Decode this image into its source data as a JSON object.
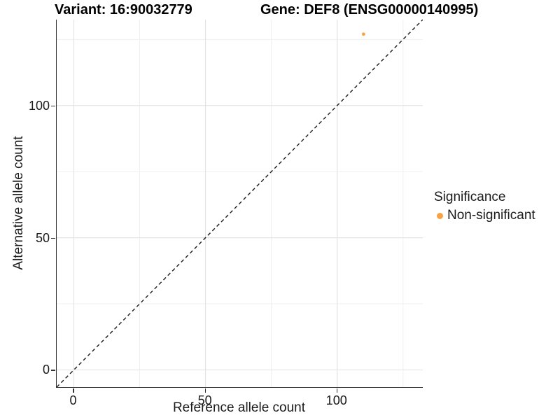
{
  "chart_data": {
    "type": "scatter",
    "title_left": "Variant: 16:90032779",
    "title_right": "Gene: DEF8 (ENSG00000140995)",
    "xlabel": "Reference allele count",
    "ylabel": "Alternative allele count",
    "xlim": [
      -6.5,
      132.5
    ],
    "ylim": [
      -6.5,
      132.5
    ],
    "x_ticks": [
      0,
      50,
      100
    ],
    "y_ticks": [
      0,
      50,
      100
    ],
    "x_minor_gridlines": [
      25,
      75,
      125
    ],
    "y_minor_gridlines": [
      25,
      75,
      125
    ],
    "grid": true,
    "identity_line": {
      "style": "dashed",
      "slope": 1,
      "intercept": 0,
      "color": "#1a1a1a"
    },
    "series": [
      {
        "name": "Non-significant",
        "color": "#F9A242",
        "points": [
          {
            "x": 110,
            "y": 127
          }
        ]
      }
    ],
    "legend": {
      "title": "Significance",
      "position": "right",
      "items": [
        {
          "label": "Non-significant",
          "color": "#F9A242"
        }
      ]
    },
    "colors": {
      "major_grid": "#E4E4E4",
      "minor_grid": "#EFEFEF",
      "axis_line": "#333333",
      "text": "#1a1a1a",
      "point": "#F9A242"
    }
  }
}
